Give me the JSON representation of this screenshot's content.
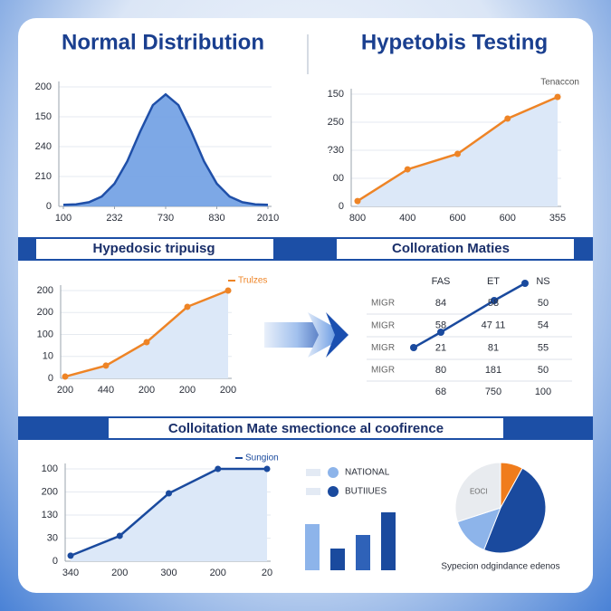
{
  "section_title": "Colloitation Mate smectionce al coofirence",
  "chart_data": [
    {
      "type": "area",
      "title": "Normal Distribution",
      "x": [
        0,
        0.25,
        0.5,
        0.75,
        1,
        1.25,
        1.5,
        1.75,
        2,
        2.25,
        2.5,
        2.75,
        3,
        3.25,
        3.5,
        3.75,
        4
      ],
      "xlim": [
        0,
        4
      ],
      "xticks": [
        {
          "value": 0,
          "label": "100"
        },
        {
          "value": 1,
          "label": "232"
        },
        {
          "value": 2,
          "label": "730"
        },
        {
          "value": 3,
          "label": "830"
        },
        {
          "value": 4,
          "label": "2010"
        }
      ],
      "ylim": [
        0,
        4
      ],
      "yticks": [
        {
          "value": 0,
          "label": "0"
        },
        {
          "value": 1,
          "label": "210"
        },
        {
          "value": 2,
          "label": "240"
        },
        {
          "value": 3,
          "label": "150"
        },
        {
          "value": 4,
          "label": "200"
        }
      ],
      "grid": true,
      "series": [
        {
          "color": "#1f4fa8",
          "fill": "#6f9fe3",
          "values": [
            0.05,
            0.07,
            0.14,
            0.33,
            0.76,
            1.51,
            2.5,
            3.39,
            3.75,
            3.39,
            2.5,
            1.51,
            0.76,
            0.33,
            0.14,
            0.07,
            0.05
          ]
        }
      ]
    },
    {
      "type": "line",
      "title": "Hypetobis Testing",
      "categories": [
        "800",
        "400",
        "600",
        "600",
        "355"
      ],
      "ylim": [
        0,
        4
      ],
      "yticks": [
        {
          "value": 0,
          "label": "0"
        },
        {
          "value": 1,
          "label": "00"
        },
        {
          "value": 2,
          "label": "?30"
        },
        {
          "value": 3,
          "label": "250"
        },
        {
          "value": 4,
          "label": "150"
        }
      ],
      "grid": true,
      "area_fill": "#dce8f8",
      "series": [
        {
          "name": "Tenaccon",
          "color": "#ee8426",
          "values": [
            0.19,
            1.32,
            1.87,
            3.13,
            3.9
          ]
        }
      ]
    },
    {
      "type": "line",
      "title": "Hypedosic tripuisg",
      "categories": [
        "200",
        "440",
        "200",
        "200",
        "200"
      ],
      "ylim": [
        0,
        4
      ],
      "yticks": [
        {
          "value": 0,
          "label": "0"
        },
        {
          "value": 1,
          "label": "10"
        },
        {
          "value": 2,
          "label": "100"
        },
        {
          "value": 3,
          "label": "200"
        },
        {
          "value": 4,
          "label": "200"
        }
      ],
      "grid": true,
      "area_fill": "#dce8f8",
      "series": [
        {
          "name": "Trulzes",
          "color": "#ee8426",
          "values": [
            0.08,
            0.58,
            1.65,
            3.26,
            4.0
          ]
        }
      ]
    },
    {
      "type": "table",
      "title": "Colloration Maties",
      "columns": [
        "FAS",
        "ET",
        "NS"
      ],
      "rows": [
        [
          "MIGR",
          "84",
          "58",
          "50"
        ],
        [
          "MIGR",
          "58",
          "47 11",
          "54"
        ],
        [
          "MIGR",
          "21",
          "81",
          "55"
        ],
        [
          "MIGR",
          "80",
          "181",
          "50"
        ]
      ],
      "footer": [
        "68",
        "750",
        "100"
      ]
    },
    {
      "type": "line",
      "categories": [
        "340",
        "200",
        "300",
        "200",
        "20"
      ],
      "ylim": [
        0,
        4
      ],
      "yticks": [
        {
          "value": 0,
          "label": "0"
        },
        {
          "value": 1,
          "label": "30"
        },
        {
          "value": 2,
          "label": "130"
        },
        {
          "value": 3,
          "label": "200"
        },
        {
          "value": 4,
          "label": "100"
        }
      ],
      "grid": true,
      "area_fill": "#dce8f8",
      "series": [
        {
          "name": "Sungion",
          "color": "#1a4a9e",
          "values": [
            0.24,
            1.1,
            2.94,
            4.0,
            4.0
          ]
        }
      ]
    },
    {
      "type": "bar",
      "values": [
        51,
        24,
        39,
        64
      ],
      "colors": [
        "#8db4ea",
        "#1a4a9e",
        "#2f62b8",
        "#1a4a9e"
      ],
      "legend": [
        {
          "name": "NATIONAL",
          "color": "#8db4ea"
        },
        {
          "name": "BUTIIUES",
          "color": "#1a4a9e"
        }
      ]
    },
    {
      "type": "pie",
      "title": "Sypecion odgindance edenos",
      "values": [
        8,
        48,
        14,
        30
      ],
      "labels": [
        null,
        null,
        null,
        "EOCI"
      ],
      "colors": [
        "#f07c1c",
        "#1a4a9e",
        "#8db4ea",
        "#e8ebef"
      ]
    }
  ]
}
